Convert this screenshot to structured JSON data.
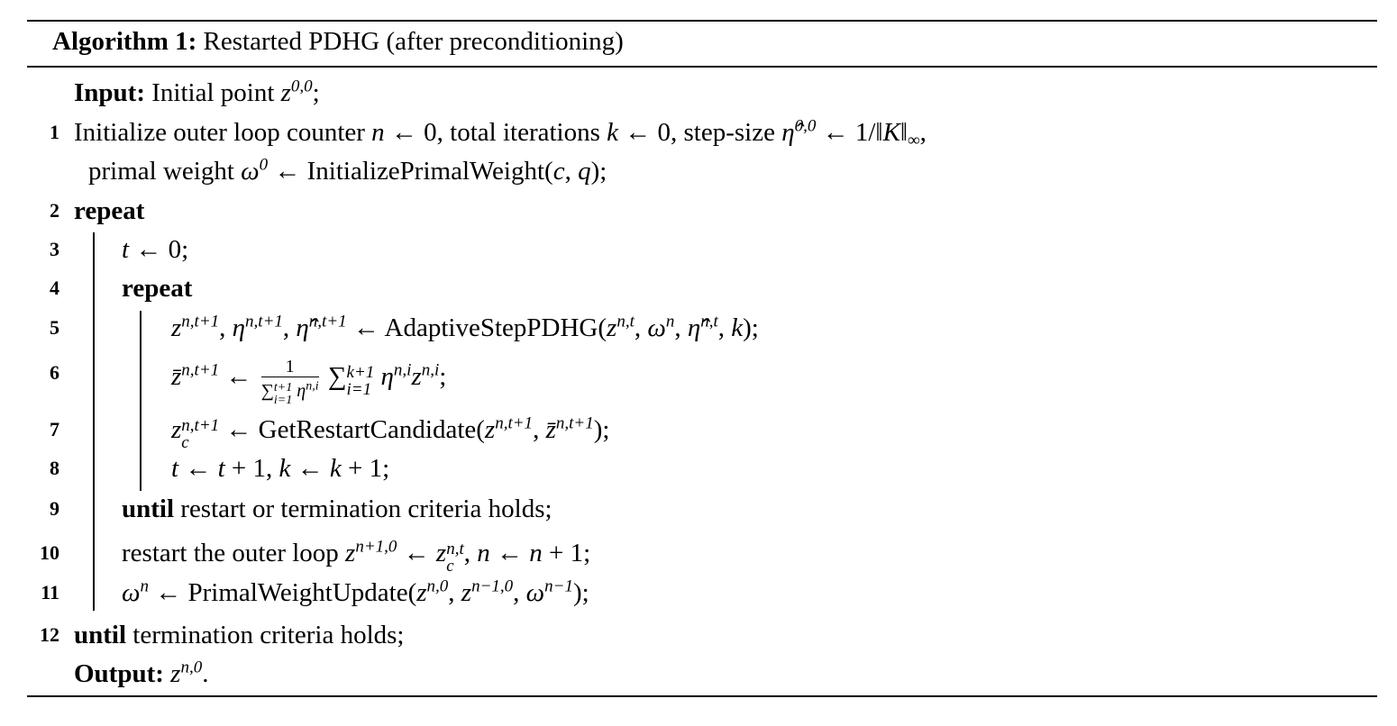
{
  "caption": {
    "label": "Algorithm 1:",
    "title": " Restarted PDHG (after preconditioning)"
  },
  "lines": [
    {
      "num": "",
      "indent": 0,
      "segs": [
        [
          "b",
          "Input:"
        ],
        [
          "r",
          " Initial point "
        ],
        [
          "i",
          "z"
        ],
        [
          "sup",
          "0,0"
        ],
        [
          "r",
          ";"
        ]
      ]
    },
    {
      "num": "1",
      "indent": 0,
      "segs": [
        [
          "r",
          "Initialize outer loop counter "
        ],
        [
          "i",
          "n"
        ],
        [
          "r",
          " ← 0, total iterations "
        ],
        [
          "i",
          "k"
        ],
        [
          "r",
          " ← 0, step-size "
        ],
        [
          "i",
          "η̂"
        ],
        [
          "sup",
          "0,0"
        ],
        [
          "r",
          " ← 1/‖"
        ],
        [
          "i",
          "K"
        ],
        [
          "r",
          "‖"
        ],
        [
          "sub",
          "∞"
        ],
        [
          "r",
          ","
        ]
      ]
    },
    {
      "num": "",
      "indent": 0.5,
      "segs": [
        [
          "r",
          "primal weight "
        ],
        [
          "i",
          "ω"
        ],
        [
          "sup",
          "0"
        ],
        [
          "r",
          " ← InitializePrimalWeight("
        ],
        [
          "i",
          "c"
        ],
        [
          "r",
          ", "
        ],
        [
          "i",
          "q"
        ],
        [
          "r",
          ");"
        ]
      ]
    },
    {
      "num": "2",
      "indent": 0,
      "segs": [
        [
          "b",
          "repeat"
        ]
      ]
    },
    {
      "num": "3",
      "indent": 1,
      "segs": [
        [
          "i",
          "t"
        ],
        [
          "r",
          " ← 0;"
        ]
      ]
    },
    {
      "num": "4",
      "indent": 1,
      "segs": [
        [
          "b",
          "repeat"
        ]
      ]
    },
    {
      "num": "5",
      "indent": 2,
      "segs": [
        [
          "i",
          "z"
        ],
        [
          "sup",
          "n,t+1"
        ],
        [
          "r",
          ", "
        ],
        [
          "i",
          "η"
        ],
        [
          "sup",
          "n,t+1"
        ],
        [
          "r",
          ", "
        ],
        [
          "i",
          "η̂"
        ],
        [
          "sup",
          "n,t+1"
        ],
        [
          "r",
          " ← AdaptiveStepPDHG("
        ],
        [
          "i",
          "z"
        ],
        [
          "sup",
          "n,t"
        ],
        [
          "r",
          ", "
        ],
        [
          "i",
          "ω"
        ],
        [
          "sup",
          "n"
        ],
        [
          "r",
          ", "
        ],
        [
          "i",
          "η̂"
        ],
        [
          "sup",
          "n,t"
        ],
        [
          "r",
          ", "
        ],
        [
          "i",
          "k"
        ],
        [
          "r",
          ");"
        ]
      ]
    },
    {
      "num": "6",
      "indent": 2,
      "segs": [
        [
          "i",
          "z̄"
        ],
        [
          "sup",
          "n,t+1"
        ],
        [
          "r",
          " ← "
        ],
        [
          "f",
          [
            [
              "r",
              "1"
            ]
          ],
          [
            [
              "r",
              "∑"
            ],
            [
              "ss",
              "t+1",
              "i=1"
            ],
            [
              "i",
              " η"
            ],
            [
              "sup",
              "n,i"
            ]
          ]
        ],
        [
          "r",
          " ∑"
        ],
        [
          "ss",
          "k+1",
          "i=1"
        ],
        [
          "i",
          " η"
        ],
        [
          "sup",
          "n,i"
        ],
        [
          "i",
          "z"
        ],
        [
          "sup",
          "n,i"
        ],
        [
          "r",
          ";"
        ]
      ]
    },
    {
      "num": "7",
      "indent": 2,
      "segs": [
        [
          "i",
          "z"
        ],
        [
          "ss",
          "n,t+1",
          "c"
        ],
        [
          "r",
          " ← GetRestartCandidate("
        ],
        [
          "i",
          "z"
        ],
        [
          "sup",
          "n,t+1"
        ],
        [
          "r",
          ", "
        ],
        [
          "i",
          "z̄"
        ],
        [
          "sup",
          "n,t+1"
        ],
        [
          "r",
          ");"
        ]
      ]
    },
    {
      "num": "8",
      "indent": 2,
      "segs": [
        [
          "i",
          "t"
        ],
        [
          "r",
          " ← "
        ],
        [
          "i",
          "t"
        ],
        [
          "r",
          " + 1, "
        ],
        [
          "i",
          "k"
        ],
        [
          "r",
          " ← "
        ],
        [
          "i",
          "k"
        ],
        [
          "r",
          " + 1;"
        ]
      ]
    },
    {
      "num": "9",
      "indent": 1,
      "segs": [
        [
          "b",
          "until"
        ],
        [
          "r",
          " restart or termination criteria holds;"
        ]
      ]
    },
    {
      "num": "10",
      "indent": 1,
      "segs": [
        [
          "r",
          "restart the outer loop "
        ],
        [
          "i",
          "z"
        ],
        [
          "sup",
          "n+1,0"
        ],
        [
          "r",
          " ← "
        ],
        [
          "i",
          "z"
        ],
        [
          "ss",
          "n,t",
          "c"
        ],
        [
          "r",
          ", "
        ],
        [
          "i",
          "n"
        ],
        [
          "r",
          " ← "
        ],
        [
          "i",
          "n"
        ],
        [
          "r",
          " + 1;"
        ]
      ]
    },
    {
      "num": "11",
      "indent": 1,
      "segs": [
        [
          "i",
          "ω"
        ],
        [
          "sup",
          "n"
        ],
        [
          "r",
          " ← PrimalWeightUpdate("
        ],
        [
          "i",
          "z"
        ],
        [
          "sup",
          "n,0"
        ],
        [
          "r",
          ", "
        ],
        [
          "i",
          "z"
        ],
        [
          "sup",
          "n−1,0"
        ],
        [
          "r",
          ", "
        ],
        [
          "i",
          "ω"
        ],
        [
          "sup",
          "n−1"
        ],
        [
          "r",
          ");"
        ]
      ]
    },
    {
      "num": "12",
      "indent": 0,
      "segs": [
        [
          "b",
          "until"
        ],
        [
          "r",
          " termination criteria holds;"
        ]
      ]
    },
    {
      "num": "",
      "indent": 0,
      "segs": [
        [
          "b",
          "Output:"
        ],
        [
          "r",
          " "
        ],
        [
          "i",
          "z"
        ],
        [
          "sup",
          "n,0"
        ],
        [
          "r",
          "."
        ]
      ]
    }
  ]
}
